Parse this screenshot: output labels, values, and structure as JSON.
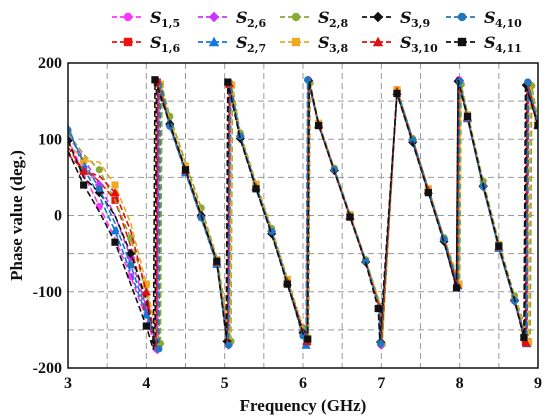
{
  "chart_data": {
    "type": "line",
    "title": "",
    "xlabel": "Frequency (GHz)",
    "ylabel": "Phase value (deg.)",
    "xlim": [
      3,
      9
    ],
    "ylim": [
      -200,
      200
    ],
    "xticks": [
      "3",
      "4",
      "5",
      "6",
      "7",
      "8",
      "9"
    ],
    "yticks": [
      "200",
      "100",
      "0",
      "-100",
      "-200"
    ],
    "grid": true,
    "grid_style": "dashed",
    "legend_position": "top",
    "series": [
      {
        "name": "S",
        "sub": "1,5",
        "color": "#ff33ff",
        "marker": "circle",
        "dash": "6,3",
        "x": [
          3.0,
          3.2,
          3.4,
          3.6,
          3.8,
          4.0,
          4.13,
          4.15,
          4.3,
          4.5,
          4.7,
          4.9,
          5.05,
          5.07,
          5.2,
          5.4,
          5.6,
          5.8,
          6.0,
          6.05,
          6.07,
          6.2,
          6.4,
          6.6,
          6.8,
          6.98,
          7.0,
          7.2,
          7.4,
          7.6,
          7.8,
          7.97,
          7.99,
          8.1,
          8.3,
          8.5,
          8.7,
          8.85,
          8.87,
          9.0
        ],
        "y": [
          100,
          55,
          12,
          -30,
          -80,
          -135,
          -175,
          178,
          120,
          60,
          0,
          -60,
          -170,
          175,
          105,
          40,
          -20,
          -85,
          -150,
          -165,
          178,
          120,
          60,
          0,
          -60,
          -120,
          -170,
          165,
          100,
          35,
          -30,
          -90,
          178,
          130,
          40,
          -40,
          -110,
          -165,
          175,
          120
        ]
      },
      {
        "name": "S",
        "sub": "1,6",
        "color": "#ee1111",
        "marker": "square",
        "dash": "6,3",
        "x": [
          3.0,
          3.2,
          3.4,
          3.6,
          3.8,
          4.0,
          4.12,
          4.14,
          4.3,
          4.5,
          4.7,
          4.9,
          5.04,
          5.06,
          5.2,
          5.4,
          5.6,
          5.8,
          6.0,
          6.05,
          6.07,
          6.2,
          6.4,
          6.6,
          6.8,
          6.98,
          7.0,
          7.2,
          7.4,
          7.6,
          7.8,
          7.97,
          7.99,
          8.1,
          8.3,
          8.5,
          8.7,
          8.84,
          8.86,
          9.0
        ],
        "y": [
          80,
          60,
          45,
          20,
          -40,
          -120,
          -178,
          175,
          118,
          58,
          -2,
          -62,
          -168,
          172,
          102,
          38,
          -22,
          -88,
          -152,
          -166,
          176,
          118,
          58,
          -2,
          -62,
          -122,
          -172,
          162,
          98,
          32,
          -32,
          -92,
          176,
          128,
          38,
          -42,
          -112,
          -166,
          172,
          118
        ]
      },
      {
        "name": "S",
        "sub": "2,6",
        "color": "#cc33ff",
        "marker": "diamond",
        "dash": "6,3",
        "x": [
          3.0,
          3.2,
          3.4,
          3.6,
          3.8,
          4.0,
          4.14,
          4.16,
          4.3,
          4.5,
          4.7,
          4.9,
          5.05,
          5.07,
          5.2,
          5.4,
          5.6,
          5.8,
          6.0,
          6.05,
          6.07,
          6.2,
          6.4,
          6.6,
          6.8,
          6.98,
          7.0,
          7.2,
          7.4,
          7.6,
          7.8,
          7.98,
          8.0,
          8.1,
          8.3,
          8.5,
          8.7,
          8.86,
          8.88,
          9.0
        ],
        "y": [
          105,
          75,
          40,
          0,
          -55,
          -120,
          -176,
          176,
          118,
          58,
          -2,
          -62,
          -170,
          174,
          104,
          39,
          -21,
          -86,
          -151,
          -165,
          177,
          119,
          59,
          -1,
          -61,
          -121,
          -170,
          164,
          99,
          34,
          -31,
          -91,
          177,
          129,
          39,
          -41,
          -111,
          -165,
          174,
          119
        ]
      },
      {
        "name": "S",
        "sub": "2,7",
        "color": "#1177dd",
        "marker": "triangle",
        "dash": "6,3",
        "x": [
          3.0,
          3.2,
          3.4,
          3.6,
          3.8,
          4.0,
          4.15,
          4.17,
          4.3,
          4.5,
          4.7,
          4.9,
          5.06,
          5.08,
          5.2,
          5.4,
          5.6,
          5.8,
          6.0,
          6.04,
          6.06,
          6.2,
          6.4,
          6.6,
          6.8,
          6.97,
          6.99,
          7.2,
          7.4,
          7.6,
          7.8,
          7.98,
          8.0,
          8.1,
          8.3,
          8.5,
          8.7,
          8.86,
          8.88,
          9.0
        ],
        "y": [
          118,
          62,
          25,
          -20,
          -75,
          -130,
          -172,
          174,
          116,
          56,
          -4,
          -64,
          -171,
          173,
          103,
          38,
          -22,
          -87,
          -160,
          -170,
          178,
          120,
          60,
          0,
          -60,
          -120,
          -169,
          163,
          98,
          33,
          -32,
          -92,
          175,
          127,
          37,
          -43,
          -113,
          -168,
          173,
          118
        ]
      },
      {
        "name": "S",
        "sub": "2,8",
        "color": "#88aa33",
        "marker": "circle",
        "dash": "6,3",
        "x": [
          3.0,
          3.2,
          3.4,
          3.6,
          3.8,
          4.0,
          4.18,
          4.2,
          4.3,
          4.5,
          4.7,
          4.9,
          5.08,
          5.1,
          5.2,
          5.4,
          5.6,
          5.8,
          6.0,
          6.07,
          6.09,
          6.2,
          6.4,
          6.6,
          6.8,
          6.99,
          7.01,
          7.2,
          7.4,
          7.6,
          7.8,
          8.0,
          8.02,
          8.1,
          8.3,
          8.5,
          8.7,
          8.9,
          8.92,
          9.0
        ],
        "y": [
          108,
          80,
          60,
          20,
          -30,
          -100,
          -168,
          170,
          130,
          70,
          10,
          -55,
          -165,
          170,
          108,
          43,
          -17,
          -82,
          -147,
          -162,
          174,
          122,
          62,
          2,
          -58,
          -118,
          -168,
          166,
          101,
          36,
          -29,
          -89,
          172,
          135,
          45,
          -35,
          -105,
          -165,
          170,
          125
        ]
      },
      {
        "name": "S",
        "sub": "3,8",
        "color": "#eeaa22",
        "marker": "square",
        "dash": "6,3",
        "x": [
          3.0,
          3.2,
          3.4,
          3.6,
          3.8,
          4.0,
          4.16,
          4.18,
          4.3,
          4.5,
          4.7,
          4.9,
          5.07,
          5.09,
          5.2,
          5.4,
          5.6,
          5.8,
          6.0,
          6.06,
          6.08,
          6.2,
          6.4,
          6.6,
          6.8,
          6.99,
          7.01,
          7.2,
          7.4,
          7.6,
          7.8,
          7.99,
          8.01,
          8.1,
          8.3,
          8.5,
          8.7,
          8.88,
          8.9,
          9.0
        ],
        "y": [
          95,
          72,
          70,
          40,
          -10,
          -90,
          -170,
          172,
          125,
          65,
          5,
          -58,
          -167,
          171,
          106,
          41,
          -19,
          -84,
          -149,
          -164,
          175,
          121,
          61,
          1,
          -59,
          -119,
          -168,
          165,
          100,
          35,
          -30,
          -90,
          174,
          132,
          42,
          -38,
          -108,
          -166,
          171,
          122
        ]
      },
      {
        "name": "S",
        "sub": "3,9",
        "color": "#111111",
        "marker": "diamond",
        "dash": "6,3",
        "x": [
          3.0,
          3.2,
          3.4,
          3.6,
          3.8,
          4.0,
          4.11,
          4.13,
          4.3,
          4.5,
          4.7,
          4.9,
          5.03,
          5.05,
          5.2,
          5.4,
          5.6,
          5.8,
          6.0,
          6.05,
          6.07,
          6.2,
          6.4,
          6.6,
          6.8,
          6.97,
          6.99,
          7.2,
          7.4,
          7.6,
          7.8,
          7.96,
          7.98,
          8.1,
          8.3,
          8.5,
          8.7,
          8.83,
          8.85,
          9.0
        ],
        "y": [
          98,
          50,
          30,
          0,
          -50,
          -110,
          -165,
          176,
          120,
          60,
          0,
          -60,
          -165,
          176,
          101,
          36,
          -24,
          -89,
          -154,
          -167,
          177,
          119,
          59,
          -1,
          -61,
          -121,
          -166,
          161,
          96,
          31,
          -34,
          -94,
          176,
          128,
          38,
          -42,
          -112,
          -164,
          171,
          117
        ]
      },
      {
        "name": "S",
        "sub": "3,10",
        "color": "#dd1111",
        "marker": "triangle",
        "dash": "6,3",
        "x": [
          3.0,
          3.2,
          3.4,
          3.6,
          3.8,
          4.0,
          4.13,
          4.15,
          4.3,
          4.5,
          4.7,
          4.9,
          5.04,
          5.06,
          5.2,
          5.4,
          5.6,
          5.8,
          6.0,
          6.05,
          6.07,
          6.2,
          6.4,
          6.6,
          6.8,
          6.98,
          7.0,
          7.2,
          7.4,
          7.6,
          7.8,
          7.97,
          7.99,
          8.1,
          8.3,
          8.5,
          8.7,
          8.85,
          8.87,
          9.0
        ],
        "y": [
          90,
          58,
          52,
          30,
          -20,
          -100,
          -174,
          176,
          119,
          59,
          -1,
          -61,
          -169,
          173,
          101,
          37,
          -23,
          -87,
          -151,
          -165,
          177,
          119,
          59,
          -1,
          -61,
          -121,
          -171,
          163,
          99,
          33,
          -31,
          -91,
          177,
          129,
          39,
          -41,
          -111,
          -167,
          173,
          119
        ]
      },
      {
        "name": "S",
        "sub": "4,10",
        "color": "#2277bb",
        "marker": "circle",
        "dash": "6,3",
        "x": [
          3.0,
          3.2,
          3.4,
          3.6,
          3.8,
          4.0,
          4.16,
          4.18,
          4.3,
          4.5,
          4.7,
          4.9,
          5.05,
          5.07,
          5.2,
          5.4,
          5.6,
          5.8,
          6.0,
          6.04,
          6.06,
          6.2,
          6.4,
          6.6,
          6.8,
          6.97,
          6.99,
          7.2,
          7.4,
          7.6,
          7.8,
          7.98,
          8.0,
          8.1,
          8.3,
          8.5,
          8.7,
          8.85,
          8.87,
          9.0
        ],
        "y": [
          112,
          70,
          35,
          -10,
          -65,
          -125,
          -175,
          175,
          117,
          57,
          -3,
          -63,
          -170,
          174,
          104,
          39,
          -21,
          -86,
          -158,
          -168,
          178,
          120,
          60,
          0,
          -60,
          -120,
          -168,
          164,
          99,
          34,
          -31,
          -91,
          176,
          128,
          38,
          -42,
          -112,
          -162,
          175,
          121
        ]
      },
      {
        "name": "S",
        "sub": "4,11",
        "color": "#111111",
        "marker": "square",
        "dash": "6,3",
        "x": [
          3.0,
          3.2,
          3.4,
          3.6,
          3.8,
          4.0,
          4.09,
          4.11,
          4.3,
          4.5,
          4.7,
          4.9,
          5.02,
          5.04,
          5.2,
          5.4,
          5.6,
          5.8,
          6.0,
          6.06,
          6.08,
          6.2,
          6.4,
          6.6,
          6.8,
          6.96,
          6.98,
          7.2,
          7.4,
          7.6,
          7.8,
          7.96,
          7.98,
          8.1,
          8.3,
          8.5,
          8.7,
          8.82,
          8.84,
          9.0
        ],
        "y": [
          85,
          40,
          5,
          -35,
          -90,
          -145,
          -176,
          178,
          120,
          60,
          0,
          -60,
          -160,
          175,
          100,
          35,
          -25,
          -90,
          -155,
          -162,
          176,
          118,
          58,
          -2,
          -62,
          -122,
          -164,
          160,
          95,
          30,
          -35,
          -95,
          178,
          130,
          40,
          -40,
          -110,
          -160,
          172,
          118
        ]
      }
    ]
  }
}
